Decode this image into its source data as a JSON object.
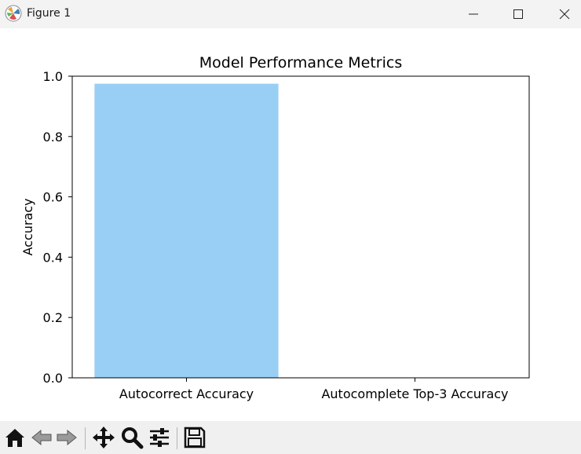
{
  "window": {
    "title": "Figure 1",
    "icon": "matplotlib-logo-icon"
  },
  "toolbar": {
    "tools": [
      "home-icon",
      "back-icon",
      "forward-icon",
      "pan-icon",
      "zoom-icon",
      "configure-subplots-icon",
      "save-icon"
    ]
  },
  "chart_data": {
    "type": "bar",
    "title": "Model Performance Metrics",
    "xlabel": "",
    "ylabel": "Accuracy",
    "categories": [
      "Autocorrect Accuracy",
      "Autocomplete Top-3 Accuracy"
    ],
    "values": [
      0.975,
      0.0
    ],
    "ylim": [
      0,
      1.0
    ],
    "yticks": [
      "0.0",
      "0.2",
      "0.4",
      "0.6",
      "0.8",
      "1.0"
    ],
    "bar_color": "#99cff5",
    "grid": false,
    "legend": "none"
  }
}
